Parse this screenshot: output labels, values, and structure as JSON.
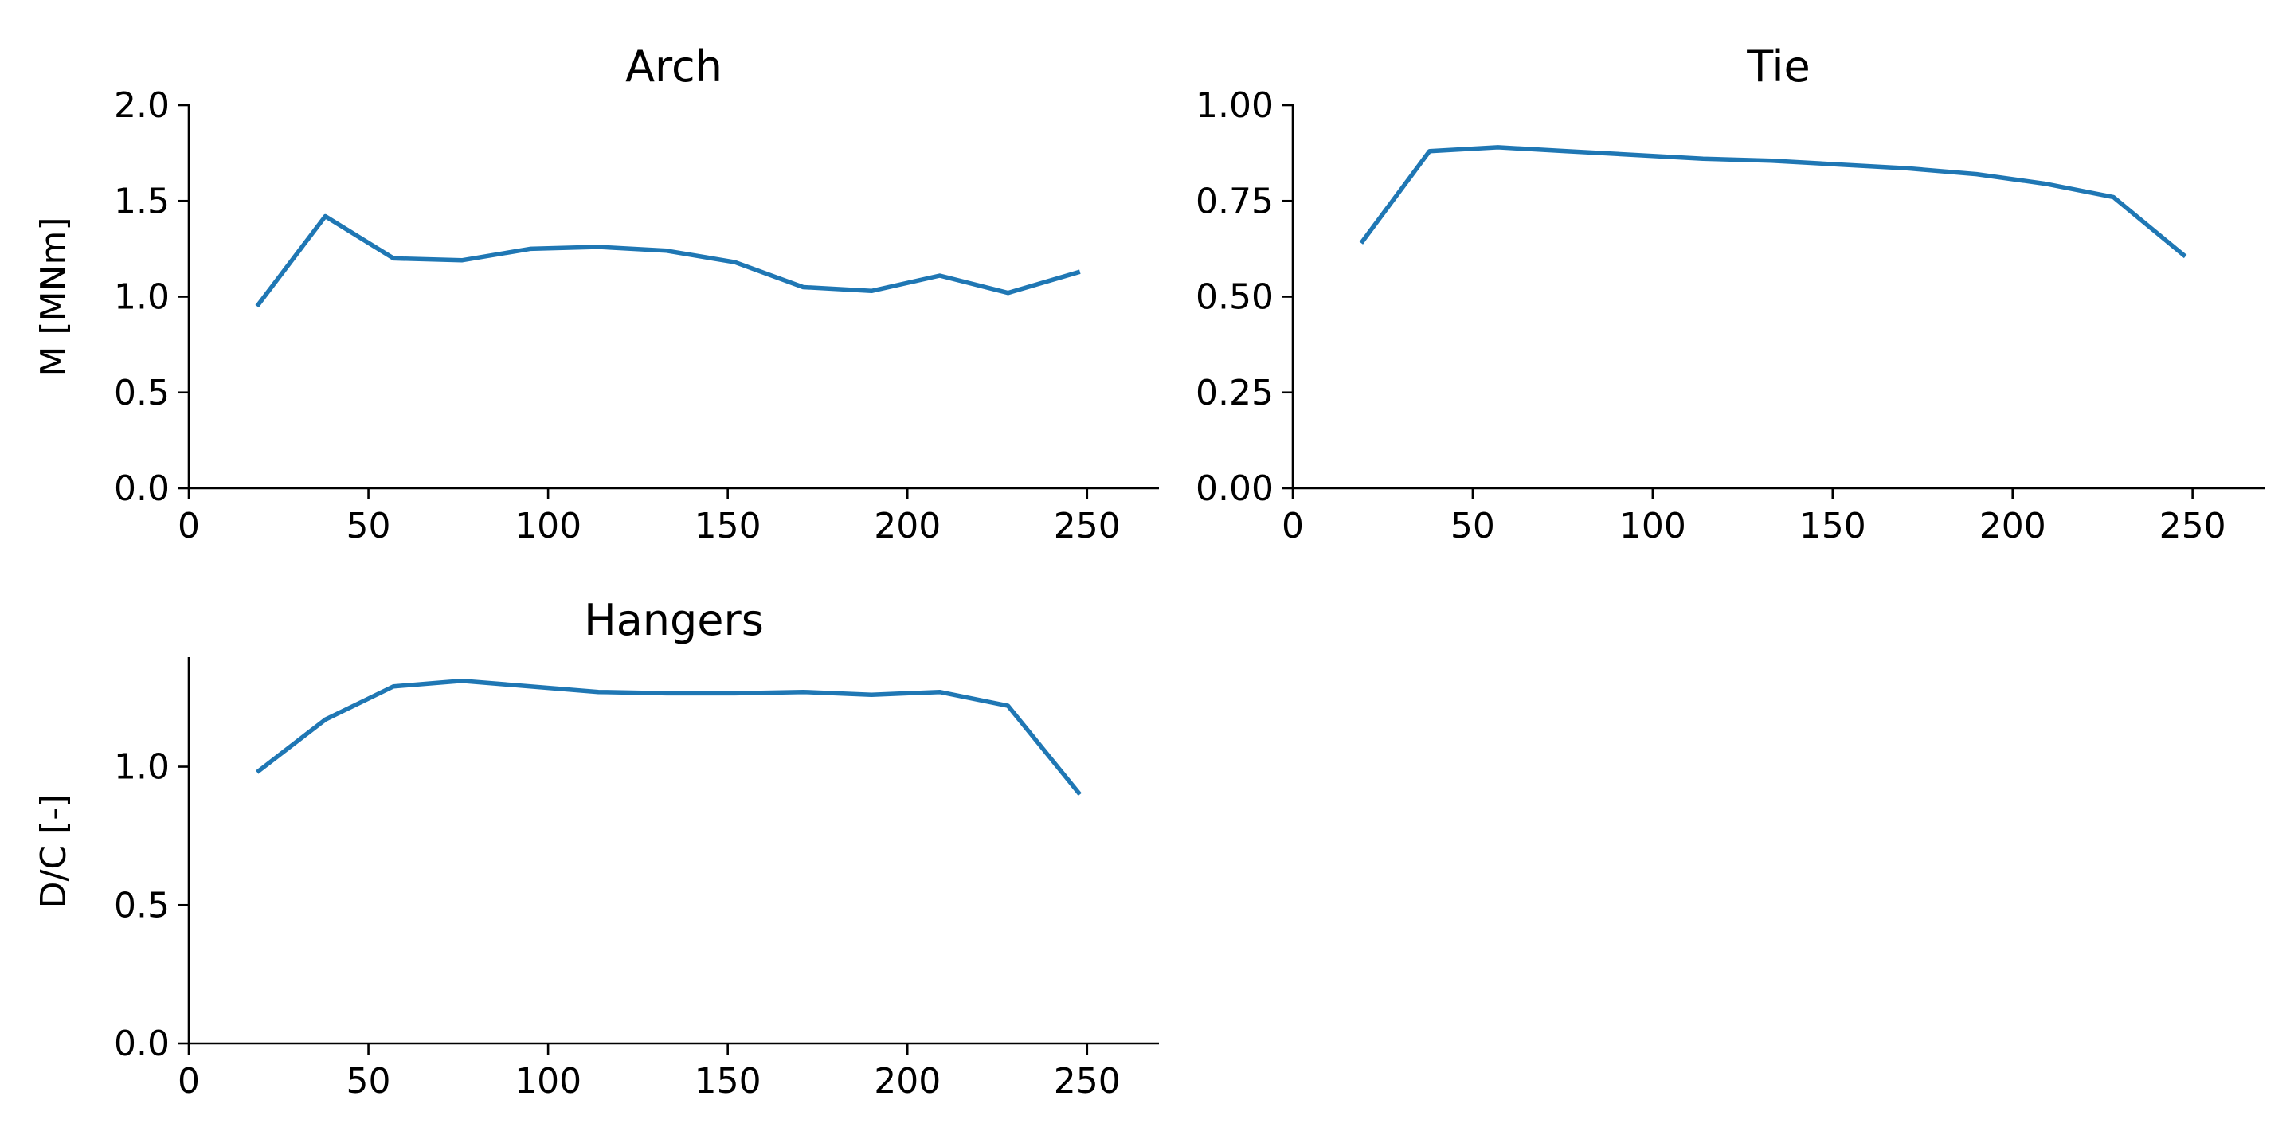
{
  "colors": {
    "series": "#1f77b4",
    "axis": "#000000",
    "background": "#ffffff"
  },
  "chart_data": [
    {
      "type": "line",
      "title": "Arch",
      "xlabel": "",
      "ylabel": "M [MNm]",
      "xlim": [
        0,
        270
      ],
      "ylim": [
        0,
        2.0
      ],
      "xticks": [
        0,
        50,
        100,
        150,
        200,
        250
      ],
      "xtick_labels": [
        "0",
        "50",
        "100",
        "150",
        "200",
        "250"
      ],
      "yticks": [
        0,
        0.5,
        1.0,
        1.5,
        2.0
      ],
      "ytick_labels": [
        "0.0",
        "0.5",
        "1.0",
        "1.5",
        "2.0"
      ],
      "grid": false,
      "series": [
        {
          "x": [
            19,
            38,
            57,
            76,
            95,
            114,
            133,
            152,
            171,
            190,
            209,
            228,
            248
          ],
          "values": [
            0.95,
            1.42,
            1.2,
            1.19,
            1.25,
            1.26,
            1.24,
            1.18,
            1.05,
            1.03,
            1.11,
            1.02,
            1.13
          ]
        }
      ]
    },
    {
      "type": "line",
      "title": "Tie",
      "xlabel": "",
      "ylabel": "",
      "xlim": [
        0,
        270
      ],
      "ylim": [
        0,
        1.0
      ],
      "xticks": [
        0,
        50,
        100,
        150,
        200,
        250
      ],
      "xtick_labels": [
        "0",
        "50",
        "100",
        "150",
        "200",
        "250"
      ],
      "yticks": [
        0,
        0.25,
        0.5,
        0.75,
        1.0
      ],
      "ytick_labels": [
        "0.00",
        "0.25",
        "0.50",
        "0.75",
        "1.00"
      ],
      "grid": false,
      "series": [
        {
          "x": [
            19,
            38,
            57,
            76,
            95,
            114,
            133,
            152,
            171,
            190,
            209,
            228,
            248
          ],
          "values": [
            0.64,
            0.88,
            0.89,
            0.88,
            0.87,
            0.86,
            0.855,
            0.845,
            0.835,
            0.82,
            0.795,
            0.76,
            0.605
          ]
        }
      ]
    },
    {
      "type": "line",
      "title": "Hangers",
      "xlabel": "",
      "ylabel": "D/C [-]",
      "xlim": [
        0,
        270
      ],
      "ylim": [
        0,
        1.39
      ],
      "xticks": [
        0,
        50,
        100,
        150,
        200,
        250
      ],
      "xtick_labels": [
        "0",
        "50",
        "100",
        "150",
        "200",
        "250"
      ],
      "yticks": [
        0,
        0.5,
        1.0
      ],
      "ytick_labels": [
        "0.0",
        "0.5",
        "1.0"
      ],
      "grid": false,
      "series": [
        {
          "x": [
            19,
            38,
            57,
            76,
            95,
            114,
            133,
            152,
            171,
            190,
            209,
            228,
            248
          ],
          "values": [
            0.98,
            1.17,
            1.29,
            1.31,
            1.29,
            1.27,
            1.265,
            1.265,
            1.27,
            1.26,
            1.27,
            1.22,
            0.9
          ]
        }
      ]
    }
  ]
}
